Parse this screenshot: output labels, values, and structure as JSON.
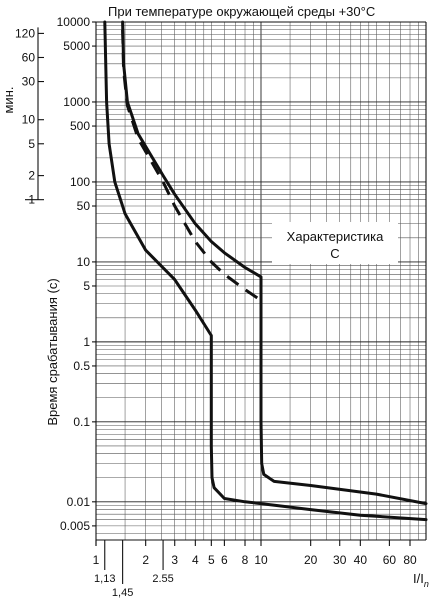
{
  "title": "При температуре окружающей среды +30°C",
  "legend_label_line1": "Характеристика",
  "legend_label_line2": "С",
  "colors": {
    "line": "#111111",
    "grid": "#222222",
    "background": "#ffffff"
  },
  "chart_data": {
    "type": "line",
    "title": "При температуре окружающей среды +30°C",
    "xlabel": "I/In",
    "ylabel": "Время срабатывания (с)",
    "secondary_ylabel": "мин.",
    "x_scale": "log",
    "y_scale": "log",
    "xlim": [
      1,
      100
    ],
    "ylim": [
      0.003,
      10000
    ],
    "grid": true,
    "x_ticks": [
      {
        "value": 1,
        "label": "1"
      },
      {
        "value": 2,
        "label": "2"
      },
      {
        "value": 3,
        "label": "3"
      },
      {
        "value": 4,
        "label": "4"
      },
      {
        "value": 5,
        "label": "5"
      },
      {
        "value": 6,
        "label": "6"
      },
      {
        "value": 8,
        "label": "8"
      },
      {
        "value": 10,
        "label": "10"
      },
      {
        "value": 20,
        "label": "20"
      },
      {
        "value": 30,
        "label": "30"
      },
      {
        "value": 40,
        "label": "40"
      },
      {
        "value": 60,
        "label": "60"
      },
      {
        "value": 80,
        "label": "80"
      }
    ],
    "x_extra_ticks": [
      {
        "value": 1.13,
        "label": "1,13"
      },
      {
        "value": 1.45,
        "label": "1,45"
      },
      {
        "value": 2.55,
        "label": "2.55"
      }
    ],
    "y_ticks": [
      {
        "value": 0.005,
        "label": "0.005"
      },
      {
        "value": 0.01,
        "label": "0.01"
      },
      {
        "value": 0.1,
        "label": "0.1"
      },
      {
        "value": 0.5,
        "label": "0.5"
      },
      {
        "value": 1,
        "label": "1"
      },
      {
        "value": 5,
        "label": "5"
      },
      {
        "value": 10,
        "label": "10"
      },
      {
        "value": 50,
        "label": "50"
      },
      {
        "value": 100,
        "label": "100"
      },
      {
        "value": 500,
        "label": "500"
      },
      {
        "value": 1000,
        "label": "1000"
      },
      {
        "value": 5000,
        "label": "5000"
      },
      {
        "value": 10000,
        "label": "10000"
      }
    ],
    "y_minutes_ticks": [
      {
        "value": 1,
        "label": "1"
      },
      {
        "value": 2,
        "label": "2"
      },
      {
        "value": 5,
        "label": "5"
      },
      {
        "value": 10,
        "label": "10"
      },
      {
        "value": 30,
        "label": "30"
      },
      {
        "value": 60,
        "label": "60"
      },
      {
        "value": 120,
        "label": "120"
      }
    ],
    "series": [
      {
        "style": "solid",
        "points": [
          [
            1.13,
            10000
          ],
          [
            1.16,
            1000
          ],
          [
            1.2,
            300
          ],
          [
            1.3,
            100
          ],
          [
            1.5,
            40
          ],
          [
            2,
            14
          ],
          [
            3,
            6
          ],
          [
            4,
            2.5
          ],
          [
            5,
            1.2
          ],
          [
            5,
            0.05
          ],
          [
            5.05,
            0.02
          ],
          [
            5.2,
            0.015
          ],
          [
            6,
            0.011
          ],
          [
            8,
            0.01
          ],
          [
            10,
            0.0095
          ],
          [
            20,
            0.008
          ],
          [
            40,
            0.0068
          ],
          [
            100,
            0.006
          ]
        ]
      },
      {
        "style": "solid",
        "points": [
          [
            1.45,
            10000
          ],
          [
            1.47,
            3000
          ],
          [
            1.55,
            1000
          ],
          [
            1.8,
            400
          ],
          [
            2.55,
            120
          ],
          [
            3,
            70
          ],
          [
            4,
            30
          ],
          [
            5,
            18
          ],
          [
            6,
            13
          ],
          [
            8,
            8.5
          ],
          [
            10,
            6.5
          ],
          [
            10,
            0.1
          ],
          [
            10.1,
            0.03
          ],
          [
            10.4,
            0.022
          ],
          [
            12,
            0.018
          ],
          [
            20,
            0.016
          ],
          [
            50,
            0.0125
          ],
          [
            100,
            0.0095
          ]
        ]
      },
      {
        "style": "dashed",
        "points": [
          [
            1.45,
            8000
          ],
          [
            1.47,
            2500
          ],
          [
            1.55,
            900
          ],
          [
            1.8,
            350
          ],
          [
            2.55,
            100
          ],
          [
            3,
            50
          ],
          [
            4,
            18
          ],
          [
            5,
            10
          ],
          [
            6,
            7
          ],
          [
            8,
            4.5
          ],
          [
            10,
            3.3
          ]
        ]
      }
    ]
  }
}
